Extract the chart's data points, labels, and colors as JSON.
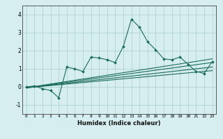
{
  "title": "",
  "xlabel": "Humidex (Indice chaleur)",
  "ylabel": "",
  "bg_color": "#d6eef0",
  "grid_color": "#aacccc",
  "line_color": "#1a6b5a",
  "xlim": [
    -0.5,
    23.5
  ],
  "ylim": [
    -1.5,
    4.5
  ],
  "xticks": [
    0,
    1,
    2,
    3,
    4,
    5,
    6,
    7,
    8,
    9,
    10,
    11,
    12,
    13,
    14,
    15,
    16,
    17,
    18,
    19,
    20,
    21,
    22,
    23
  ],
  "yticks": [
    -1,
    0,
    1,
    2,
    3,
    4
  ],
  "scatter_x": [
    0,
    1,
    2,
    3,
    4,
    5,
    6,
    7,
    8,
    9,
    10,
    11,
    12,
    13,
    14,
    15,
    16,
    17,
    18,
    19,
    20,
    21,
    22,
    23
  ],
  "scatter_y": [
    0.0,
    0.05,
    -0.1,
    -0.2,
    -0.6,
    1.1,
    1.0,
    0.85,
    1.65,
    1.6,
    1.5,
    1.35,
    2.25,
    3.75,
    3.3,
    2.5,
    2.05,
    1.55,
    1.5,
    1.65,
    1.25,
    0.85,
    0.75,
    1.4
  ],
  "trend_lines": [
    {
      "x": [
        0,
        23
      ],
      "y": [
        -0.05,
        1.55
      ]
    },
    {
      "x": [
        0,
        23
      ],
      "y": [
        -0.05,
        1.35
      ]
    },
    {
      "x": [
        0,
        23
      ],
      "y": [
        -0.05,
        1.1
      ]
    },
    {
      "x": [
        0,
        23
      ],
      "y": [
        -0.05,
        0.9
      ]
    }
  ]
}
